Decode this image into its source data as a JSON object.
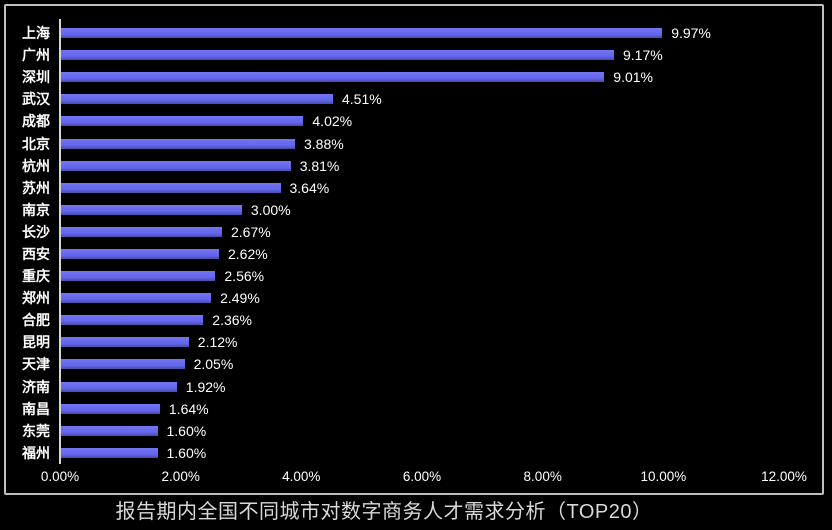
{
  "chart_data": {
    "type": "bar",
    "orientation": "horizontal",
    "title": "报告期内全国不同城市对数字商务人才需求分析（TOP20）",
    "categories": [
      "上海",
      "广州",
      "深圳",
      "武汉",
      "成都",
      "北京",
      "杭州",
      "苏州",
      "南京",
      "长沙",
      "西安",
      "重庆",
      "郑州",
      "合肥",
      "昆明",
      "天津",
      "济南",
      "南昌",
      "东莞",
      "福州"
    ],
    "values": [
      9.97,
      9.17,
      9.01,
      4.51,
      4.02,
      3.88,
      3.81,
      3.64,
      3.0,
      2.67,
      2.62,
      2.56,
      2.49,
      2.36,
      2.12,
      2.05,
      1.92,
      1.64,
      1.6,
      1.6
    ],
    "data_labels": [
      "9.97%",
      "9.17%",
      "9.01%",
      "4.51%",
      "4.02%",
      "3.88%",
      "3.81%",
      "3.64%",
      "3.00%",
      "2.67%",
      "2.62%",
      "2.56%",
      "2.49%",
      "2.36%",
      "2.12%",
      "2.05%",
      "1.92%",
      "1.64%",
      "1.60%",
      "1.60%"
    ],
    "x_ticks": [
      "0.00%",
      "2.00%",
      "4.00%",
      "6.00%",
      "8.00%",
      "10.00%",
      "12.00%"
    ],
    "xlim": [
      0,
      12
    ],
    "gridlines": false,
    "legend_position": "none",
    "colors": {
      "background": "#000000",
      "bar": "#6365ec",
      "bar_edge": "#4a4ba8",
      "category_label": "#ffffff",
      "value_label": "#ffffff",
      "tick_label": "#ffffff",
      "axis_line": "#d6d6d6",
      "frame_border": "#bfbfbf",
      "title": "#d9d9d9"
    }
  }
}
